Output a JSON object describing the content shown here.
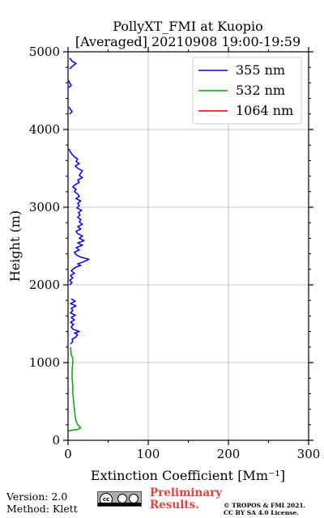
{
  "chart_data": {
    "type": "line",
    "title_line1": "PollyXT_FMI at Kuopio",
    "title_line2": "[Averaged] 20210908 19:00-19:59",
    "xlabel": "Extinction Coefficient [Mm⁻¹]",
    "ylabel": "Height (m)",
    "xlim": [
      0,
      300
    ],
    "ylim": [
      0,
      5000
    ],
    "x_ticks": [
      "0",
      "100",
      "200",
      "300"
    ],
    "y_ticks": [
      "0",
      "1000",
      "2000",
      "3000",
      "4000",
      "5000"
    ],
    "grid": true,
    "legend_position": "top-right",
    "series": [
      {
        "name": "355 nm",
        "color": "#0000ff",
        "points": [
          [
            3,
            1240
          ],
          [
            6,
            1270
          ],
          [
            5,
            1300
          ],
          [
            10,
            1330
          ],
          [
            12,
            1360
          ],
          [
            8,
            1380
          ],
          [
            14,
            1400
          ],
          [
            6,
            1430
          ],
          [
            4,
            1460
          ],
          [
            7,
            1490
          ],
          [
            3,
            1520
          ],
          [
            8,
            1550
          ],
          [
            4,
            1580
          ],
          [
            9,
            1610
          ],
          [
            3,
            1640
          ],
          [
            6,
            1670
          ],
          [
            4,
            1700
          ],
          [
            10,
            1730
          ],
          [
            3,
            1760
          ],
          [
            9,
            1790
          ],
          [
            4,
            1820
          ],
          [
            2,
            2000
          ],
          [
            5,
            2030
          ],
          [
            2,
            2060
          ],
          [
            6,
            2090
          ],
          [
            3,
            2120
          ],
          [
            8,
            2150
          ],
          [
            4,
            2180
          ],
          [
            6,
            2200
          ],
          [
            10,
            2230
          ],
          [
            16,
            2250
          ],
          [
            12,
            2270
          ],
          [
            20,
            2300
          ],
          [
            26,
            2330
          ],
          [
            15,
            2360
          ],
          [
            10,
            2390
          ],
          [
            8,
            2420
          ],
          [
            14,
            2450
          ],
          [
            10,
            2480
          ],
          [
            18,
            2510
          ],
          [
            12,
            2540
          ],
          [
            20,
            2570
          ],
          [
            14,
            2600
          ],
          [
            18,
            2630
          ],
          [
            12,
            2660
          ],
          [
            10,
            2690
          ],
          [
            16,
            2720
          ],
          [
            12,
            2750
          ],
          [
            18,
            2780
          ],
          [
            14,
            2810
          ],
          [
            16,
            2840
          ],
          [
            12,
            2870
          ],
          [
            15,
            2900
          ],
          [
            13,
            2930
          ],
          [
            17,
            2960
          ],
          [
            11,
            2990
          ],
          [
            14,
            3020
          ],
          [
            12,
            3050
          ],
          [
            16,
            3080
          ],
          [
            10,
            3110
          ],
          [
            14,
            3140
          ],
          [
            12,
            3170
          ],
          [
            8,
            3200
          ],
          [
            10,
            3230
          ],
          [
            6,
            3260
          ],
          [
            9,
            3290
          ],
          [
            14,
            3320
          ],
          [
            12,
            3350
          ],
          [
            18,
            3380
          ],
          [
            14,
            3410
          ],
          [
            16,
            3440
          ],
          [
            18,
            3470
          ],
          [
            12,
            3500
          ],
          [
            9,
            3530
          ],
          [
            14,
            3560
          ],
          [
            10,
            3590
          ],
          [
            12,
            3620
          ],
          [
            8,
            3650
          ],
          [
            5,
            3680
          ],
          [
            3,
            3710
          ],
          [
            1,
            3750
          ],
          [
            2,
            4200
          ],
          [
            5,
            4230
          ],
          [
            3,
            4260
          ],
          [
            1,
            4290
          ],
          [
            1,
            4540
          ],
          [
            4,
            4570
          ],
          [
            2,
            4600
          ],
          [
            1,
            4630
          ],
          [
            2,
            4780
          ],
          [
            6,
            4820
          ],
          [
            10,
            4850
          ],
          [
            5,
            4880
          ],
          [
            2,
            4920
          ]
        ]
      },
      {
        "name": "532 nm",
        "color": "#00aa00",
        "points": [
          [
            0,
            120
          ],
          [
            5,
            130
          ],
          [
            12,
            140
          ],
          [
            16,
            160
          ],
          [
            14,
            180
          ],
          [
            12,
            200
          ],
          [
            10,
            250
          ],
          [
            9,
            300
          ],
          [
            8,
            400
          ],
          [
            7,
            500
          ],
          [
            6,
            600
          ],
          [
            6,
            700
          ],
          [
            5,
            800
          ],
          [
            5,
            900
          ],
          [
            6,
            1000
          ],
          [
            6,
            1050
          ],
          [
            4,
            1100
          ],
          [
            3,
            1200
          ],
          [
            2,
            1400
          ],
          [
            1,
            1600
          ],
          [
            1,
            1800
          ],
          [
            1,
            2000
          ],
          [
            1,
            2200
          ],
          [
            1,
            2400
          ],
          [
            1,
            2600
          ],
          [
            1,
            2800
          ],
          [
            2,
            3000
          ],
          [
            2,
            3200
          ],
          [
            2,
            3400
          ],
          [
            2,
            3600
          ],
          [
            3,
            3800
          ],
          [
            2,
            4000
          ],
          [
            3,
            4200
          ],
          [
            3,
            4400
          ],
          [
            3,
            4600
          ],
          [
            2,
            4800
          ],
          [
            1,
            5000
          ]
        ]
      },
      {
        "name": "1064 nm",
        "color": "#dd0000",
        "points": []
      }
    ]
  },
  "footer": {
    "version": "Version: 2.0",
    "method": "Method: Klett",
    "preliminary_line1": "Preliminary",
    "preliminary_line2": "Results.",
    "copyright_line1": "© TROPOS & FMI 2021.",
    "copyright_line2": "CC BY SA 4.0 License.",
    "license_badge_text": "cc"
  }
}
